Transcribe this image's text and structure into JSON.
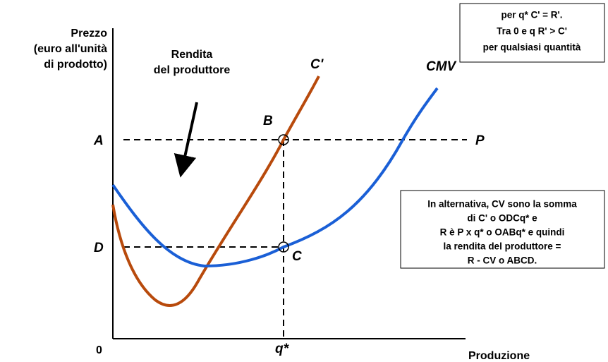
{
  "axis": {
    "y_label": [
      "Prezzo",
      "(euro all'unità",
      "di prodotto)"
    ],
    "x_label": "Produzione",
    "origin": "0",
    "x_mark": "q*"
  },
  "annotation": [
    "Rendita",
    "del produttore"
  ],
  "curves": {
    "marginal": "C'",
    "average": "CMV"
  },
  "points": {
    "A": "A",
    "B": "B",
    "C": "C",
    "D": "D",
    "P": "P"
  },
  "box_top": [
    "per q* C' = R'.",
    "Tra 0 e q R' > C'",
    "per qualsiasi quantità"
  ],
  "box_bottom": [
    "In alternativa, CV sono la somma",
    "di C' o ODCq* e",
    "R è P x q* o OABq* e quindi",
    "la rendita del produttore =",
    "R - CV o ABCD."
  ]
}
